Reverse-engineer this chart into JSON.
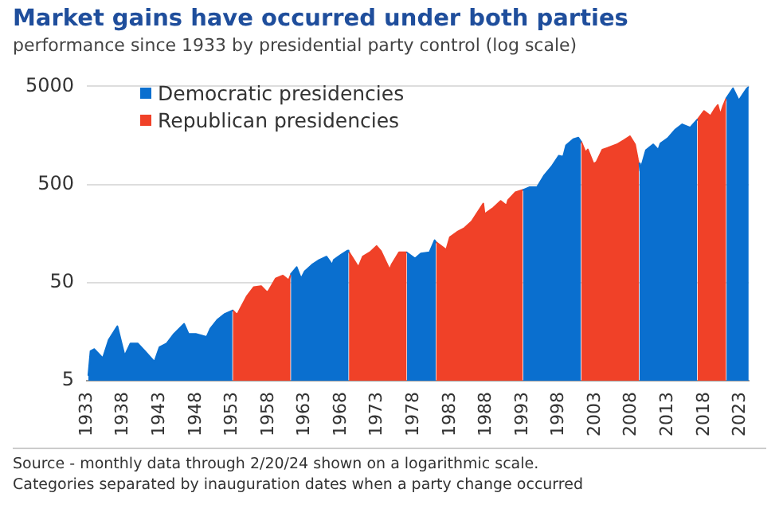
{
  "chart_data": {
    "type": "area",
    "title": "Market gains have occurred under both parties",
    "subtitle": "performance since 1933 by presidential party control (log scale)",
    "annotations": [
      "Source - monthly data through 2/20/24 shown on a logarithmic scale.",
      "Categories separated by inauguration dates when a party change occurred"
    ],
    "series": [
      {
        "name": "Democratic presidencies",
        "color": "#0a6fcf",
        "x": [
          1933.2,
          1933.5,
          1934,
          1935.2,
          1936,
          1937.2,
          1938.2,
          1939,
          1940,
          1941,
          1942.3,
          1943,
          1944,
          1945,
          1946.4,
          1947,
          1948,
          1949.5,
          1950,
          1951,
          1952,
          1953.05,
          1957,
          1961.1,
          1961.9,
          1962.5,
          1963,
          1964,
          1965,
          1966,
          1966.8,
          1967,
          1968,
          1968.9,
          1969.05,
          1973,
          1977.1,
          1978.2,
          1979,
          1980.2,
          1980.9,
          1981.05,
          1987,
          1993.1,
          1994,
          1995,
          1996,
          1997,
          1998,
          1998.6,
          1999,
          2000,
          2000.7,
          2001.05,
          2005,
          2009.1,
          2009.2,
          2010,
          2011,
          2011.7,
          2012,
          2013,
          2014,
          2015,
          2016.1,
          2017.05,
          2019,
          2021.1,
          2022,
          2022.8,
          2023.4,
          2023.9,
          2024.15
        ],
        "values": [
          5.7,
          10,
          10.5,
          8.5,
          13,
          18,
          9,
          12,
          12,
          10,
          7.8,
          11,
          12,
          15,
          19,
          15,
          15,
          14,
          17,
          21,
          24,
          26,
          null,
          61,
          72,
          55,
          65,
          76,
          85,
          92,
          76,
          85,
          96,
          106,
          103,
          null,
          101,
          88,
          99,
          102,
          135,
          130,
          null,
          440,
          470,
          470,
          620,
          760,
          980,
          960,
          1250,
          1450,
          1500,
          1370,
          null,
          820,
          690,
          1120,
          1280,
          1130,
          1310,
          1480,
          1800,
          2050,
          1900,
          2280,
          null,
          3800,
          4770,
          3600,
          4200,
          4750,
          4950
        ]
      },
      {
        "name": "Republican presidencies",
        "color": "#f04128",
        "x": [
          1953.1,
          1953.7,
          1954,
          1955,
          1956,
          1957,
          1957.8,
          1958,
          1959,
          1960,
          1960.8,
          1961.05,
          1965,
          1969.1,
          1970.4,
          1971,
          1972,
          1972.9,
          1973.5,
          1974.7,
          1975,
          1976,
          1977.05,
          1979,
          1981.1,
          1982.5,
          1983,
          1984,
          1985,
          1986,
          1987.6,
          1987.8,
          1988,
          1989,
          1990,
          1990.8,
          1991,
          1992,
          1993.05,
          1997,
          2001.1,
          2001.7,
          2002,
          2002.8,
          2003.2,
          2004,
          2005,
          2006,
          2007,
          2007.8,
          2008.5,
          2008.9,
          2009.05,
          2013,
          2017.1,
          2018,
          2018.9,
          2019.5,
          2019.9,
          2020.25,
          2020.6,
          2021.05
        ],
        "values": [
          26,
          23.5,
          26,
          36,
          45,
          46,
          40,
          41,
          55,
          59,
          53,
          59,
          null,
          102,
          72,
          92,
          102,
          118,
          105,
          68,
          77,
          102,
          102,
          null,
          129,
          108,
          145,
          164,
          180,
          210,
          320,
          245,
          257,
          290,
          340,
          305,
          345,
          415,
          440,
          null,
          1360,
          1060,
          1140,
          810,
          850,
          1130,
          1200,
          1280,
          1420,
          1550,
          1280,
          900,
          800,
          null,
          2280,
          2800,
          2500,
          2950,
          3230,
          2580,
          3100,
          3750
        ]
      }
    ],
    "xlim": [
      1933,
      2024.2
    ],
    "xticks": [
      1933,
      1938,
      1943,
      1948,
      1953,
      1958,
      1963,
      1968,
      1973,
      1978,
      1983,
      1988,
      1993,
      1998,
      2003,
      2008,
      2013,
      2018,
      2023
    ],
    "ylim": [
      5,
      5000
    ],
    "yticks": [
      5,
      50,
      500,
      5000
    ],
    "log": "y",
    "grid": "y",
    "legend": "top left"
  }
}
